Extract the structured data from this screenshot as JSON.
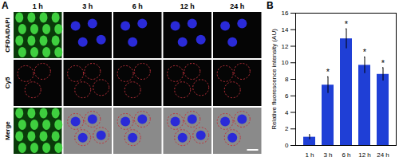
{
  "panel_labels": [
    "A",
    "B"
  ],
  "panel_a": {
    "columns": [
      "1 h",
      "3 h",
      "6 h",
      "12 h",
      "24 h"
    ],
    "rows": [
      "CFDA/DAPI",
      "Cy5",
      "Merge"
    ]
  },
  "chart_data": {
    "type": "bar",
    "categories": [
      "1 h",
      "3 h",
      "6 h",
      "12 h",
      "24 h"
    ],
    "values": [
      1.0,
      7.3,
      12.9,
      9.7,
      8.6
    ],
    "errors": [
      0.3,
      1.0,
      1.2,
      1.0,
      0.8
    ],
    "significance": [
      null,
      "*",
      "*",
      "*",
      "*"
    ],
    "color": "#1f3fd6",
    "ylabel": "Relative fluorescence intensity (AU)",
    "ylim": [
      0,
      16
    ],
    "yticks": [
      0,
      2,
      4,
      6,
      8,
      10,
      12,
      14,
      16
    ],
    "grid": false
  }
}
